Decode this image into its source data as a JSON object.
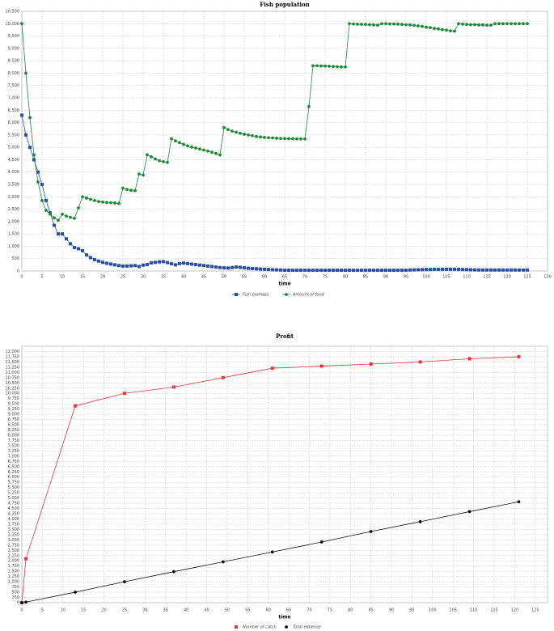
{
  "chart_data": [
    {
      "type": "line",
      "title": "Fish population",
      "xlabel": "time",
      "legend": "bottom",
      "grid": true,
      "xlim": [
        0,
        130
      ],
      "xticks": [
        0,
        5,
        10,
        15,
        20,
        25,
        30,
        35,
        40,
        45,
        50,
        55,
        60,
        65,
        70,
        75,
        80,
        85,
        90,
        95,
        100,
        105,
        110,
        115,
        120,
        125,
        130
      ],
      "ylim": [
        0,
        10500
      ],
      "yticks": [
        0,
        500,
        {
          "value": 1000,
          "label": "1,000"
        },
        {
          "value": 1500,
          "label": "1,500"
        },
        {
          "value": 2000,
          "label": "2,000"
        },
        {
          "value": 2500,
          "label": "2,500"
        },
        {
          "value": 3000,
          "label": "3,000"
        },
        {
          "value": 3500,
          "label": "3,500"
        },
        {
          "value": 4000,
          "label": "4,000"
        },
        {
          "value": 4500,
          "label": "4,500"
        },
        {
          "value": 5000,
          "label": "5,000"
        },
        {
          "value": 5500,
          "label": "5,500"
        },
        {
          "value": 6000,
          "label": "6,000"
        },
        {
          "value": 6500,
          "label": "6,500"
        },
        {
          "value": 7000,
          "label": "7,000"
        },
        {
          "value": 7500,
          "label": "7,500"
        },
        {
          "value": 8000,
          "label": "8,000"
        },
        {
          "value": 8500,
          "label": "8,500"
        },
        {
          "value": 9000,
          "label": "9,000"
        },
        {
          "value": 9500,
          "label": "9,500"
        },
        {
          "value": 10000,
          "label": "10,000"
        },
        {
          "value": 10500,
          "label": "10,500"
        }
      ],
      "x": [
        0,
        1,
        2,
        3,
        4,
        5,
        6,
        7,
        8,
        9,
        10,
        11,
        12,
        13,
        14,
        15,
        16,
        17,
        18,
        19,
        20,
        21,
        22,
        23,
        24,
        25,
        26,
        27,
        28,
        29,
        30,
        31,
        32,
        33,
        34,
        35,
        36,
        37,
        38,
        39,
        40,
        41,
        42,
        43,
        44,
        45,
        46,
        47,
        48,
        49,
        50,
        51,
        52,
        53,
        54,
        55,
        56,
        57,
        58,
        59,
        60,
        61,
        62,
        63,
        64,
        65,
        66,
        67,
        68,
        69,
        70,
        71,
        72,
        73,
        74,
        75,
        76,
        77,
        78,
        79,
        80,
        81,
        82,
        83,
        84,
        85,
        86,
        87,
        88,
        89,
        90,
        91,
        92,
        93,
        94,
        95,
        96,
        97,
        98,
        99,
        100,
        101,
        102,
        103,
        104,
        105,
        106,
        107,
        108,
        109,
        110,
        111,
        112,
        113,
        114,
        115,
        116,
        117,
        118,
        119,
        120,
        121,
        122,
        123,
        124,
        125
      ],
      "series": [
        {
          "name": "Fish biomass",
          "color": "#2a4fb0",
          "marker": "square",
          "values": [
            6300,
            5500,
            5000,
            4500,
            4000,
            3500,
            2850,
            2350,
            1850,
            1500,
            1500,
            1300,
            1100,
            950,
            900,
            820,
            650,
            540,
            460,
            400,
            350,
            310,
            280,
            250,
            220,
            200,
            200,
            210,
            220,
            180,
            240,
            260,
            330,
            350,
            370,
            380,
            340,
            290,
            250,
            300,
            320,
            300,
            280,
            260,
            240,
            220,
            200,
            180,
            160,
            140,
            130,
            120,
            140,
            160,
            150,
            130,
            110,
            100,
            90,
            80,
            70,
            60,
            50,
            45,
            40,
            30,
            30,
            30,
            30,
            30,
            30,
            30,
            30,
            30,
            30,
            30,
            30,
            30,
            30,
            30,
            30,
            30,
            30,
            30,
            30,
            30,
            30,
            30,
            30,
            30,
            30,
            30,
            30,
            30,
            30,
            30,
            40,
            45,
            50,
            55,
            60,
            60,
            65,
            65,
            70,
            70,
            70,
            70,
            65,
            60,
            55,
            50,
            45,
            40,
            40,
            40,
            40,
            40,
            40,
            40,
            40,
            40,
            40,
            40,
            40,
            40
          ]
        },
        {
          "name": "Amount of food",
          "color": "#1e8a36",
          "marker": "circle",
          "values": [
            10000,
            8000,
            6200,
            4700,
            3600,
            2850,
            2450,
            2300,
            2150,
            2050,
            2300,
            2220,
            2170,
            2130,
            2550,
            3000,
            2950,
            2900,
            2850,
            2810,
            2790,
            2770,
            2760,
            2750,
            2730,
            3350,
            3300,
            3260,
            3250,
            3920,
            3880,
            4700,
            4620,
            4530,
            4460,
            4420,
            4390,
            5350,
            5260,
            5190,
            5120,
            5060,
            5010,
            4970,
            4930,
            4890,
            4850,
            4800,
            4750,
            4690,
            5800,
            5720,
            5660,
            5610,
            5570,
            5530,
            5500,
            5470,
            5440,
            5420,
            5400,
            5390,
            5380,
            5370,
            5360,
            5355,
            5350,
            5350,
            5345,
            5340,
            5340,
            6650,
            8300,
            8300,
            8290,
            8290,
            8280,
            8270,
            8260,
            8250,
            8250,
            10000,
            9990,
            9980,
            9975,
            9970,
            9960,
            9950,
            9940,
            10000,
            10000,
            9990,
            9990,
            9980,
            9970,
            9960,
            9950,
            9930,
            9910,
            9890,
            9860,
            9840,
            9810,
            9790,
            9760,
            9740,
            9710,
            9700,
            10000,
            9980,
            9970,
            9960,
            9960,
            9950,
            9950,
            9940,
            9940,
            10000,
            10000,
            10000,
            10000,
            10000,
            10000,
            10000,
            10000,
            10000
          ]
        }
      ]
    },
    {
      "type": "line",
      "title": "Profit",
      "xlabel": "time",
      "legend": "bottom",
      "grid": true,
      "xlim": [
        0,
        128
      ],
      "xticks": [
        0,
        5,
        10,
        15,
        20,
        25,
        30,
        35,
        40,
        45,
        50,
        55,
        60,
        65,
        70,
        75,
        80,
        85,
        90,
        95,
        100,
        105,
        110,
        115,
        120,
        125
      ],
      "ylim": [
        0,
        12250
      ],
      "yticks": [
        0,
        250,
        500,
        750,
        {
          "value": 1000,
          "label": "1,000"
        },
        {
          "value": 1250,
          "label": "1,250"
        },
        {
          "value": 1500,
          "label": "1,500"
        },
        {
          "value": 1750,
          "label": "1,750"
        },
        {
          "value": 2000,
          "label": "2,000"
        },
        {
          "value": 2250,
          "label": "2,250"
        },
        {
          "value": 2500,
          "label": "2,500"
        },
        {
          "value": 2750,
          "label": "2,750"
        },
        {
          "value": 3000,
          "label": "3,000"
        },
        {
          "value": 3250,
          "label": "3,250"
        },
        {
          "value": 3500,
          "label": "3,500"
        },
        {
          "value": 3750,
          "label": "3,750"
        },
        {
          "value": 4000,
          "label": "4,000"
        },
        {
          "value": 4250,
          "label": "4,250"
        },
        {
          "value": 4500,
          "label": "4,500"
        },
        {
          "value": 4750,
          "label": "4,750"
        },
        {
          "value": 5000,
          "label": "5,000"
        },
        {
          "value": 5250,
          "label": "5,250"
        },
        {
          "value": 5500,
          "label": "5,500"
        },
        {
          "value": 5750,
          "label": "5,750"
        },
        {
          "value": 6000,
          "label": "6,000"
        },
        {
          "value": 6250,
          "label": "6,250"
        },
        {
          "value": 6500,
          "label": "6,500"
        },
        {
          "value": 6750,
          "label": "6,750"
        },
        {
          "value": 7000,
          "label": "7,000"
        },
        {
          "value": 7250,
          "label": "7,250"
        },
        {
          "value": 7500,
          "label": "7,500"
        },
        {
          "value": 7750,
          "label": "7,750"
        },
        {
          "value": 8000,
          "label": "8,000"
        },
        {
          "value": 8250,
          "label": "8,250"
        },
        {
          "value": 8500,
          "label": "8,500"
        },
        {
          "value": 8750,
          "label": "8,750"
        },
        {
          "value": 9000,
          "label": "9,000"
        },
        {
          "value": 9250,
          "label": "9,250"
        },
        {
          "value": 9500,
          "label": "9,500"
        },
        {
          "value": 9750,
          "label": "9,750"
        },
        {
          "value": 10000,
          "label": "10,000"
        },
        {
          "value": 10250,
          "label": "10,250"
        },
        {
          "value": 10500,
          "label": "10,500"
        },
        {
          "value": 10750,
          "label": "10,750"
        },
        {
          "value": 11000,
          "label": "11,000"
        },
        {
          "value": 11250,
          "label": "11,250"
        },
        {
          "value": 11500,
          "label": "11,500"
        },
        {
          "value": 11750,
          "label": "11,750"
        },
        {
          "value": 12000,
          "label": "12,000"
        }
      ],
      "x": [
        0,
        1,
        13,
        25,
        37,
        49,
        61,
        73,
        85,
        97,
        109,
        121
      ],
      "series": [
        {
          "name": "Number of catch",
          "color": "#e8363a",
          "marker": "square",
          "values": [
            0,
            2100,
            9400,
            10000,
            10300,
            10750,
            11200,
            11300,
            11400,
            11500,
            11650,
            11750
          ]
        },
        {
          "name": "Total expense",
          "color": "#111111",
          "marker": "circle",
          "values": [
            0,
            30,
            500,
            1000,
            1480,
            1950,
            2420,
            2900,
            3400,
            3870,
            4350,
            4820
          ]
        }
      ]
    }
  ]
}
